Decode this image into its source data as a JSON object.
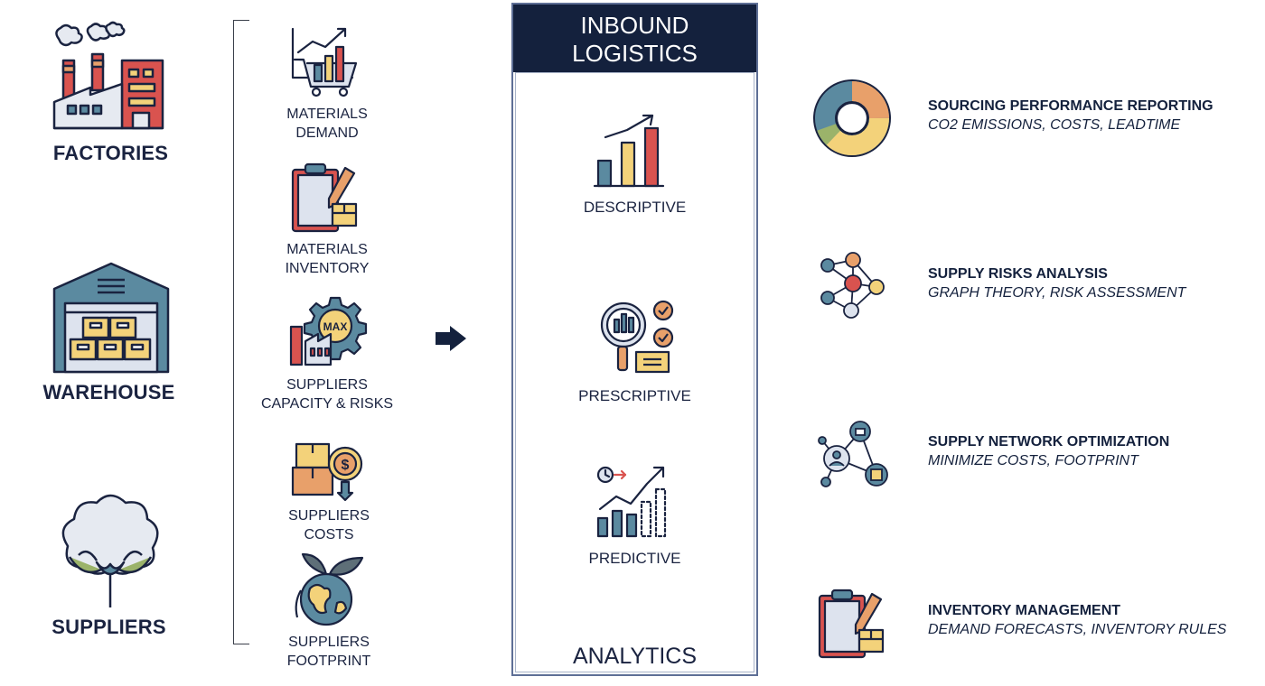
{
  "sources": [
    {
      "label": "FACTORIES",
      "icon": "factory-icon"
    },
    {
      "label": "WAREHOUSE",
      "icon": "warehouse-icon"
    },
    {
      "label": "SUPPLIERS",
      "icon": "cotton-plant-icon"
    }
  ],
  "inputs": [
    {
      "line1": "MATERIALS",
      "line2": "DEMAND",
      "icon": "shopping-cart-chart-icon"
    },
    {
      "line1": "MATERIALS",
      "line2": "INVENTORY",
      "icon": "clipboard-box-icon"
    },
    {
      "line1": "SUPPLIERS",
      "line2": "CAPACITY & RISKS",
      "icon": "max-capacity-gear-icon"
    },
    {
      "line1": "SUPPLIERS",
      "line2": "COSTS",
      "icon": "boxes-dollar-icon"
    },
    {
      "line1": "SUPPLIERS",
      "line2": "FOOTPRINT",
      "icon": "globe-leaves-icon"
    }
  ],
  "center": {
    "header_line1": "INBOUND",
    "header_line2": "LOGISTICS",
    "items": [
      {
        "label": "DESCRIPTIVE",
        "icon": "bar-chart-icon"
      },
      {
        "label": "PRESCRIPTIVE",
        "icon": "magnifier-checklist-icon"
      },
      {
        "label": "PREDICTIVE",
        "icon": "forecast-chart-icon"
      }
    ],
    "footer": "ANALYTICS"
  },
  "outputs": [
    {
      "title": "SOURCING PERFORMANCE REPORTING",
      "subtitle": "CO2 EMISSIONS, COSTS, LEADTIME",
      "icon": "donut-chart-icon"
    },
    {
      "title": "SUPPLY RISKS ANALYSIS",
      "subtitle": "GRAPH THEORY, RISK ASSESSMENT",
      "icon": "graph-network-icon"
    },
    {
      "title": "SUPPLY NETWORK OPTIMIZATION",
      "subtitle": "MINIMIZE  COSTS, FOOTPRINT",
      "icon": "network-nodes-icon"
    },
    {
      "title": "INVENTORY MANAGEMENT",
      "subtitle": "DEMAND FORECASTS, INVENTORY RULES",
      "icon": "clipboard-box-icon"
    }
  ],
  "colors": {
    "navy": "#14213d",
    "red": "#d9534f",
    "orange": "#e8a06a",
    "yellow": "#f3d27a",
    "teal": "#5b8aa0",
    "light": "#dde3ee"
  }
}
